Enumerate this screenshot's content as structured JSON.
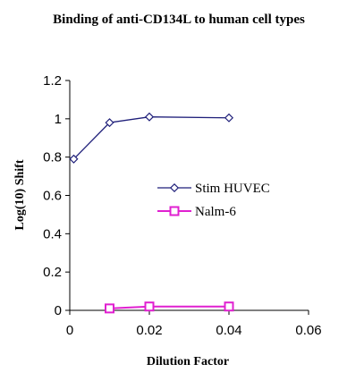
{
  "chart_data": {
    "type": "line",
    "title": "Binding of anti-CD134L to human cell types",
    "xlabel": "Dilution Factor",
    "ylabel": "Log(10) Shift",
    "xlim": [
      0,
      0.06
    ],
    "ylim": [
      0,
      1.2
    ],
    "x_ticks": [
      "0",
      "0.02",
      "0.04",
      "0.06"
    ],
    "y_ticks": [
      "0",
      "0.2",
      "0.4",
      "0.6",
      "0.8",
      "1",
      "1.2"
    ],
    "legend_position": "center-right",
    "grid": false,
    "series": [
      {
        "name": "Stim HUVEC",
        "color": "#1f1f7a",
        "marker": "diamond",
        "x": [
          0.001,
          0.01,
          0.02,
          0.04
        ],
        "y": [
          0.79,
          0.98,
          1.01,
          1.005
        ]
      },
      {
        "name": "Nalm-6",
        "color": "#e020d0",
        "marker": "square",
        "x": [
          0.01,
          0.02,
          0.04
        ],
        "y": [
          0.01,
          0.02,
          0.02
        ]
      }
    ]
  }
}
